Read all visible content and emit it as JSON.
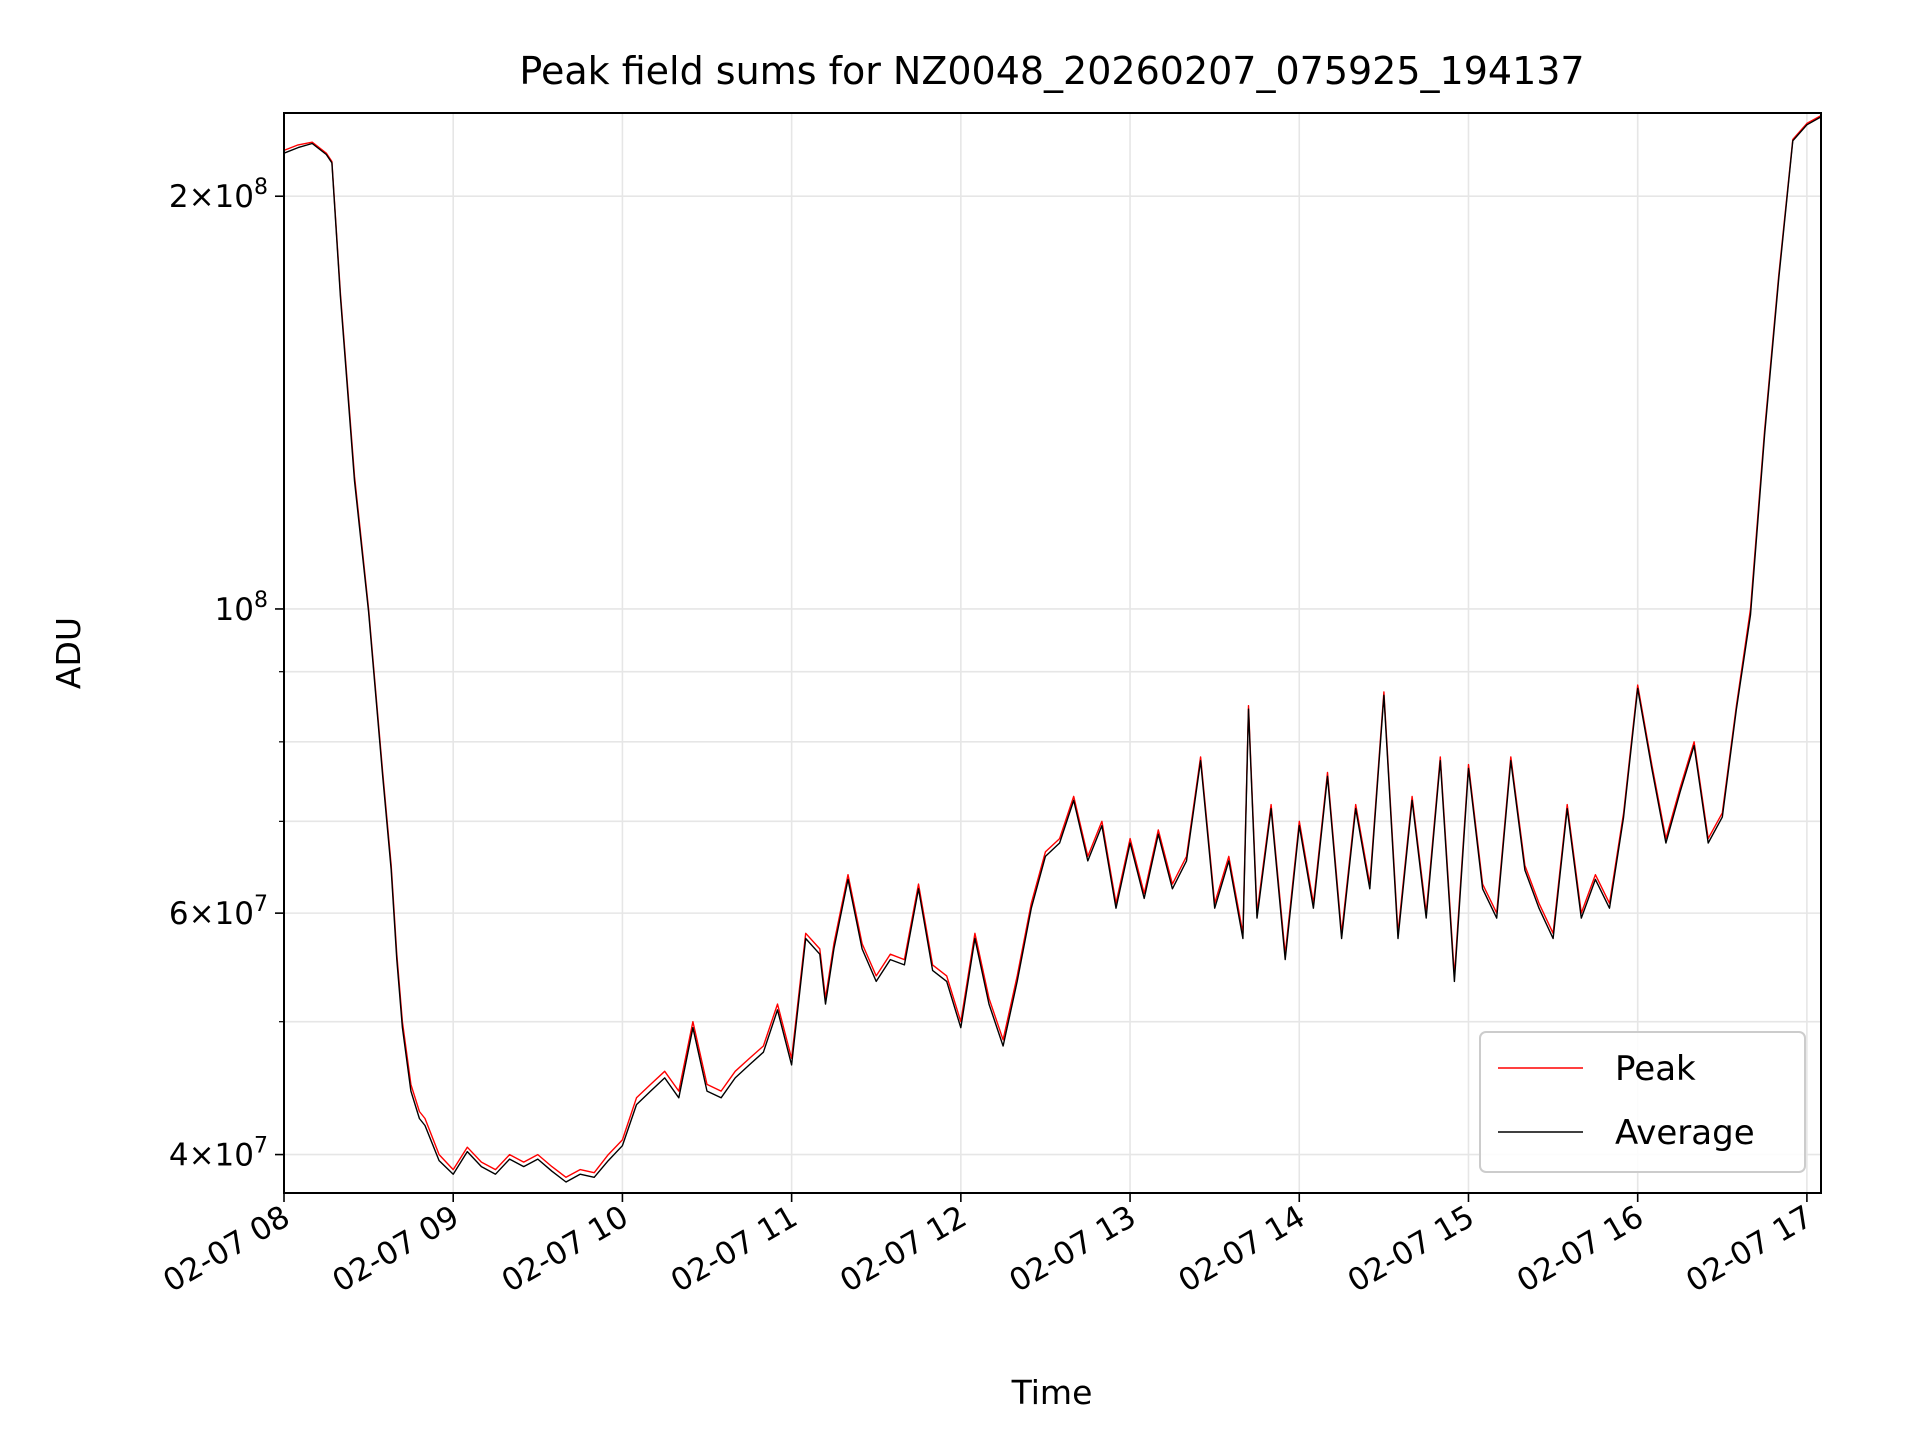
{
  "chart_data": {
    "type": "line",
    "title": "Peak field sums for NZ0048_20260207_075925_194137",
    "xlabel": "Time",
    "ylabel": "ADU",
    "yscale": "log",
    "xlim": [
      "2026-02-07T08:00",
      "2026-02-07T17:05"
    ],
    "ylim": [
      37500000,
      230000000
    ],
    "x_ticks": [
      {
        "value": "2026-02-07T08:00",
        "label": "02-07 08"
      },
      {
        "value": "2026-02-07T09:00",
        "label": "02-07 09"
      },
      {
        "value": "2026-02-07T10:00",
        "label": "02-07 10"
      },
      {
        "value": "2026-02-07T11:00",
        "label": "02-07 11"
      },
      {
        "value": "2026-02-07T12:00",
        "label": "02-07 12"
      },
      {
        "value": "2026-02-07T13:00",
        "label": "02-07 13"
      },
      {
        "value": "2026-02-07T14:00",
        "label": "02-07 14"
      },
      {
        "value": "2026-02-07T15:00",
        "label": "02-07 15"
      },
      {
        "value": "2026-02-07T16:00",
        "label": "02-07 16"
      },
      {
        "value": "2026-02-07T17:00",
        "label": "02-07 17"
      }
    ],
    "y_major_ticks": [
      {
        "value": 40000000,
        "mant": "4",
        "exp": "7"
      },
      {
        "value": 60000000,
        "mant": "6",
        "exp": "7"
      },
      {
        "value": 100000000,
        "mant": "",
        "exp": "8"
      },
      {
        "value": 200000000,
        "mant": "2",
        "exp": "8"
      }
    ],
    "y_minor_ticks": [
      50000000,
      70000000,
      80000000,
      90000000
    ],
    "grid": true,
    "legend_position": "lower-right",
    "series": [
      {
        "name": "Peak",
        "color": "#ff0000",
        "x": [
          "2026-02-07T08:00",
          "2026-02-07T08:05",
          "2026-02-07T08:10",
          "2026-02-07T08:15",
          "2026-02-07T08:17",
          "2026-02-07T08:20",
          "2026-02-07T08:25",
          "2026-02-07T08:30",
          "2026-02-07T08:35",
          "2026-02-07T08:38",
          "2026-02-07T08:40",
          "2026-02-07T08:42",
          "2026-02-07T08:45",
          "2026-02-07T08:48",
          "2026-02-07T08:50",
          "2026-02-07T08:55",
          "2026-02-07T09:00",
          "2026-02-07T09:05",
          "2026-02-07T09:10",
          "2026-02-07T09:15",
          "2026-02-07T09:20",
          "2026-02-07T09:25",
          "2026-02-07T09:30",
          "2026-02-07T09:35",
          "2026-02-07T09:40",
          "2026-02-07T09:45",
          "2026-02-07T09:50",
          "2026-02-07T09:55",
          "2026-02-07T10:00",
          "2026-02-07T10:05",
          "2026-02-07T10:10",
          "2026-02-07T10:15",
          "2026-02-07T10:20",
          "2026-02-07T10:25",
          "2026-02-07T10:30",
          "2026-02-07T10:35",
          "2026-02-07T10:40",
          "2026-02-07T10:45",
          "2026-02-07T10:50",
          "2026-02-07T10:55",
          "2026-02-07T11:00",
          "2026-02-07T11:05",
          "2026-02-07T11:10",
          "2026-02-07T11:12",
          "2026-02-07T11:15",
          "2026-02-07T11:20",
          "2026-02-07T11:25",
          "2026-02-07T11:30",
          "2026-02-07T11:35",
          "2026-02-07T11:40",
          "2026-02-07T11:45",
          "2026-02-07T11:50",
          "2026-02-07T11:55",
          "2026-02-07T12:00",
          "2026-02-07T12:05",
          "2026-02-07T12:10",
          "2026-02-07T12:15",
          "2026-02-07T12:20",
          "2026-02-07T12:25",
          "2026-02-07T12:30",
          "2026-02-07T12:35",
          "2026-02-07T12:40",
          "2026-02-07T12:45",
          "2026-02-07T12:50",
          "2026-02-07T12:55",
          "2026-02-07T13:00",
          "2026-02-07T13:05",
          "2026-02-07T13:10",
          "2026-02-07T13:15",
          "2026-02-07T13:20",
          "2026-02-07T13:25",
          "2026-02-07T13:30",
          "2026-02-07T13:35",
          "2026-02-07T13:40",
          "2026-02-07T13:42",
          "2026-02-07T13:45",
          "2026-02-07T13:50",
          "2026-02-07T13:55",
          "2026-02-07T14:00",
          "2026-02-07T14:05",
          "2026-02-07T14:10",
          "2026-02-07T14:15",
          "2026-02-07T14:20",
          "2026-02-07T14:25",
          "2026-02-07T14:30",
          "2026-02-07T14:35",
          "2026-02-07T14:40",
          "2026-02-07T14:45",
          "2026-02-07T14:50",
          "2026-02-07T14:55",
          "2026-02-07T15:00",
          "2026-02-07T15:05",
          "2026-02-07T15:10",
          "2026-02-07T15:15",
          "2026-02-07T15:20",
          "2026-02-07T15:25",
          "2026-02-07T15:30",
          "2026-02-07T15:35",
          "2026-02-07T15:40",
          "2026-02-07T15:45",
          "2026-02-07T15:50",
          "2026-02-07T15:55",
          "2026-02-07T16:00",
          "2026-02-07T16:05",
          "2026-02-07T16:10",
          "2026-02-07T16:15",
          "2026-02-07T16:20",
          "2026-02-07T16:25",
          "2026-02-07T16:30",
          "2026-02-07T16:35",
          "2026-02-07T16:40",
          "2026-02-07T16:45",
          "2026-02-07T16:50",
          "2026-02-07T16:55",
          "2026-02-07T17:00",
          "2026-02-07T17:05"
        ],
        "values": [
          216000000,
          218000000,
          219000000,
          215000000,
          212000000,
          170000000,
          125000000,
          100000000,
          76000000,
          65000000,
          56000000,
          50000000,
          45000000,
          43000000,
          42500000,
          40000000,
          39000000,
          40500000,
          39500000,
          39000000,
          40000000,
          39500000,
          40000000,
          39200000,
          38500000,
          39000000,
          38800000,
          40000000,
          41000000,
          44000000,
          45000000,
          46000000,
          44500000,
          50000000,
          45000000,
          44500000,
          46000000,
          47000000,
          48000000,
          51500000,
          47000000,
          58000000,
          56500000,
          52000000,
          57000000,
          64000000,
          57000000,
          54000000,
          56000000,
          55500000,
          63000000,
          55000000,
          54000000,
          50000000,
          58000000,
          52000000,
          48500000,
          54000000,
          61000000,
          66500000,
          68000000,
          73000000,
          66000000,
          70000000,
          61000000,
          68000000,
          62000000,
          69000000,
          63000000,
          66000000,
          78000000,
          61000000,
          66000000,
          58000000,
          85000000,
          60000000,
          72000000,
          56000000,
          70000000,
          61000000,
          76000000,
          58000000,
          72000000,
          63000000,
          87000000,
          58000000,
          73000000,
          60000000,
          78000000,
          54000000,
          77000000,
          63000000,
          60000000,
          78000000,
          65000000,
          61000000,
          58000000,
          72000000,
          60000000,
          64000000,
          61000000,
          71000000,
          88000000,
          77000000,
          68000000,
          74000000,
          80000000,
          68000000,
          71000000,
          85000000,
          100000000,
          135000000,
          175000000,
          220000000,
          226000000,
          229000000
        ]
      },
      {
        "name": "Average",
        "color": "#000000",
        "x": [
          "2026-02-07T08:00",
          "2026-02-07T08:05",
          "2026-02-07T08:10",
          "2026-02-07T08:15",
          "2026-02-07T08:17",
          "2026-02-07T08:20",
          "2026-02-07T08:25",
          "2026-02-07T08:30",
          "2026-02-07T08:35",
          "2026-02-07T08:38",
          "2026-02-07T08:40",
          "2026-02-07T08:42",
          "2026-02-07T08:45",
          "2026-02-07T08:48",
          "2026-02-07T08:50",
          "2026-02-07T08:55",
          "2026-02-07T09:00",
          "2026-02-07T09:05",
          "2026-02-07T09:10",
          "2026-02-07T09:15",
          "2026-02-07T09:20",
          "2026-02-07T09:25",
          "2026-02-07T09:30",
          "2026-02-07T09:35",
          "2026-02-07T09:40",
          "2026-02-07T09:45",
          "2026-02-07T09:50",
          "2026-02-07T09:55",
          "2026-02-07T10:00",
          "2026-02-07T10:05",
          "2026-02-07T10:10",
          "2026-02-07T10:15",
          "2026-02-07T10:20",
          "2026-02-07T10:25",
          "2026-02-07T10:30",
          "2026-02-07T10:35",
          "2026-02-07T10:40",
          "2026-02-07T10:45",
          "2026-02-07T10:50",
          "2026-02-07T10:55",
          "2026-02-07T11:00",
          "2026-02-07T11:05",
          "2026-02-07T11:10",
          "2026-02-07T11:12",
          "2026-02-07T11:15",
          "2026-02-07T11:20",
          "2026-02-07T11:25",
          "2026-02-07T11:30",
          "2026-02-07T11:35",
          "2026-02-07T11:40",
          "2026-02-07T11:45",
          "2026-02-07T11:50",
          "2026-02-07T11:55",
          "2026-02-07T12:00",
          "2026-02-07T12:05",
          "2026-02-07T12:10",
          "2026-02-07T12:15",
          "2026-02-07T12:20",
          "2026-02-07T12:25",
          "2026-02-07T12:30",
          "2026-02-07T12:35",
          "2026-02-07T12:40",
          "2026-02-07T12:45",
          "2026-02-07T12:50",
          "2026-02-07T12:55",
          "2026-02-07T13:00",
          "2026-02-07T13:05",
          "2026-02-07T13:10",
          "2026-02-07T13:15",
          "2026-02-07T13:20",
          "2026-02-07T13:25",
          "2026-02-07T13:30",
          "2026-02-07T13:35",
          "2026-02-07T13:40",
          "2026-02-07T13:42",
          "2026-02-07T13:45",
          "2026-02-07T13:50",
          "2026-02-07T13:55",
          "2026-02-07T14:00",
          "2026-02-07T14:05",
          "2026-02-07T14:10",
          "2026-02-07T14:15",
          "2026-02-07T14:20",
          "2026-02-07T14:25",
          "2026-02-07T14:30",
          "2026-02-07T14:35",
          "2026-02-07T14:40",
          "2026-02-07T14:45",
          "2026-02-07T14:50",
          "2026-02-07T14:55",
          "2026-02-07T15:00",
          "2026-02-07T15:05",
          "2026-02-07T15:10",
          "2026-02-07T15:15",
          "2026-02-07T15:20",
          "2026-02-07T15:25",
          "2026-02-07T15:30",
          "2026-02-07T15:35",
          "2026-02-07T15:40",
          "2026-02-07T15:45",
          "2026-02-07T15:50",
          "2026-02-07T15:55",
          "2026-02-07T16:00",
          "2026-02-07T16:05",
          "2026-02-07T16:10",
          "2026-02-07T16:15",
          "2026-02-07T16:20",
          "2026-02-07T16:25",
          "2026-02-07T16:30",
          "2026-02-07T16:35",
          "2026-02-07T16:40",
          "2026-02-07T16:45",
          "2026-02-07T16:50",
          "2026-02-07T16:55",
          "2026-02-07T17:00",
          "2026-02-07T17:05"
        ],
        "values": [
          215000000,
          217000000,
          218500000,
          214500000,
          211500000,
          169000000,
          124000000,
          99500000,
          75500000,
          64500000,
          55500000,
          49500000,
          44500000,
          42500000,
          42000000,
          39600000,
          38700000,
          40200000,
          39200000,
          38700000,
          39700000,
          39200000,
          39700000,
          38900000,
          38200000,
          38700000,
          38500000,
          39600000,
          40600000,
          43500000,
          44500000,
          45500000,
          44000000,
          49500000,
          44500000,
          44000000,
          45500000,
          46500000,
          47500000,
          51000000,
          46500000,
          57500000,
          56000000,
          51500000,
          56500000,
          63500000,
          56500000,
          53500000,
          55500000,
          55000000,
          62500000,
          54500000,
          53500000,
          49500000,
          57500000,
          51500000,
          48000000,
          53500000,
          60500000,
          66000000,
          67500000,
          72500000,
          65500000,
          69500000,
          60500000,
          67500000,
          61500000,
          68500000,
          62500000,
          65500000,
          77500000,
          60500000,
          65500000,
          57500000,
          84500000,
          59500000,
          71500000,
          55500000,
          69500000,
          60500000,
          75500000,
          57500000,
          71500000,
          62500000,
          86500000,
          57500000,
          72500000,
          59500000,
          77500000,
          53500000,
          76500000,
          62500000,
          59500000,
          77500000,
          64500000,
          60500000,
          57500000,
          71500000,
          59500000,
          63500000,
          60500000,
          70500000,
          87500000,
          76500000,
          67500000,
          73500000,
          79500000,
          67500000,
          70500000,
          84500000,
          99000000,
          134000000,
          174000000,
          219500000,
          225500000,
          228500000
        ]
      }
    ]
  }
}
